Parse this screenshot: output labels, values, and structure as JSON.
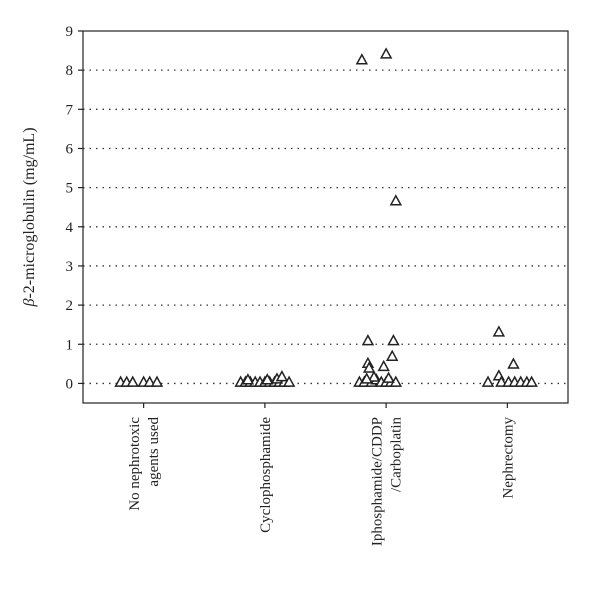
{
  "chart_data": {
    "type": "scatter",
    "ylabel_greek": "β",
    "ylabel_rest": "-2-microglobulin (mg/mL)",
    "ylim": [
      -0.5,
      9
    ],
    "yticks": [
      0,
      1,
      2,
      3,
      4,
      5,
      6,
      7,
      8,
      9
    ],
    "grid": "horizontal-dotted",
    "categories": [
      {
        "lines": [
          "No nephrotoxic",
          "agents used"
        ]
      },
      {
        "lines": [
          "Cyclophosphamide"
        ]
      },
      {
        "lines": [
          "Iphosphamide/CDDP",
          "/Carboplatin"
        ]
      },
      {
        "lines": [
          "Nephrectomy"
        ]
      }
    ],
    "series": [
      {
        "category": 0,
        "points": [
          {
            "offset": -0.19,
            "y": 0.02
          },
          {
            "offset": -0.14,
            "y": 0.02
          },
          {
            "offset": -0.09,
            "y": 0.02
          },
          {
            "offset": 0.0,
            "y": 0.02
          },
          {
            "offset": 0.05,
            "y": 0.02
          },
          {
            "offset": 0.11,
            "y": 0.02
          }
        ]
      },
      {
        "category": 1,
        "points": [
          {
            "offset": -0.2,
            "y": 0.02
          },
          {
            "offset": -0.16,
            "y": 0.02
          },
          {
            "offset": -0.12,
            "y": 0.02
          },
          {
            "offset": -0.08,
            "y": 0.02
          },
          {
            "offset": -0.04,
            "y": 0.02
          },
          {
            "offset": 0.0,
            "y": 0.02
          },
          {
            "offset": 0.04,
            "y": 0.02
          },
          {
            "offset": 0.08,
            "y": 0.02
          },
          {
            "offset": 0.12,
            "y": 0.02
          },
          {
            "offset": 0.16,
            "y": 0.02
          },
          {
            "offset": 0.2,
            "y": 0.02
          },
          {
            "offset": -0.14,
            "y": 0.08
          },
          {
            "offset": 0.02,
            "y": 0.08
          },
          {
            "offset": 0.1,
            "y": 0.1
          },
          {
            "offset": 0.14,
            "y": 0.16
          }
        ]
      },
      {
        "category": 2,
        "points": [
          {
            "offset": -0.2,
            "y": 8.25
          },
          {
            "offset": 0.0,
            "y": 8.4
          },
          {
            "offset": 0.08,
            "y": 4.65
          },
          {
            "offset": -0.15,
            "y": 1.08
          },
          {
            "offset": 0.06,
            "y": 1.08
          },
          {
            "offset": 0.05,
            "y": 0.68
          },
          {
            "offset": -0.15,
            "y": 0.5
          },
          {
            "offset": -0.14,
            "y": 0.38
          },
          {
            "offset": -0.02,
            "y": 0.42
          },
          {
            "offset": -0.22,
            "y": 0.02
          },
          {
            "offset": -0.18,
            "y": 0.02
          },
          {
            "offset": -0.12,
            "y": 0.02
          },
          {
            "offset": -0.08,
            "y": 0.08
          },
          {
            "offset": -0.04,
            "y": 0.02
          },
          {
            "offset": 0.0,
            "y": 0.02
          },
          {
            "offset": 0.04,
            "y": 0.02
          },
          {
            "offset": 0.08,
            "y": 0.02
          },
          {
            "offset": -0.1,
            "y": 0.15
          },
          {
            "offset": 0.02,
            "y": 0.12
          },
          {
            "offset": -0.16,
            "y": 0.1
          }
        ]
      },
      {
        "category": 3,
        "points": [
          {
            "offset": -0.07,
            "y": 1.3
          },
          {
            "offset": 0.05,
            "y": 0.48
          },
          {
            "offset": -0.07,
            "y": 0.18
          },
          {
            "offset": -0.16,
            "y": 0.02
          },
          {
            "offset": -0.05,
            "y": 0.02
          },
          {
            "offset": 0.01,
            "y": 0.02
          },
          {
            "offset": 0.06,
            "y": 0.02
          },
          {
            "offset": 0.11,
            "y": 0.02
          },
          {
            "offset": 0.16,
            "y": 0.02
          },
          {
            "offset": 0.2,
            "y": 0.02
          }
        ]
      }
    ]
  }
}
